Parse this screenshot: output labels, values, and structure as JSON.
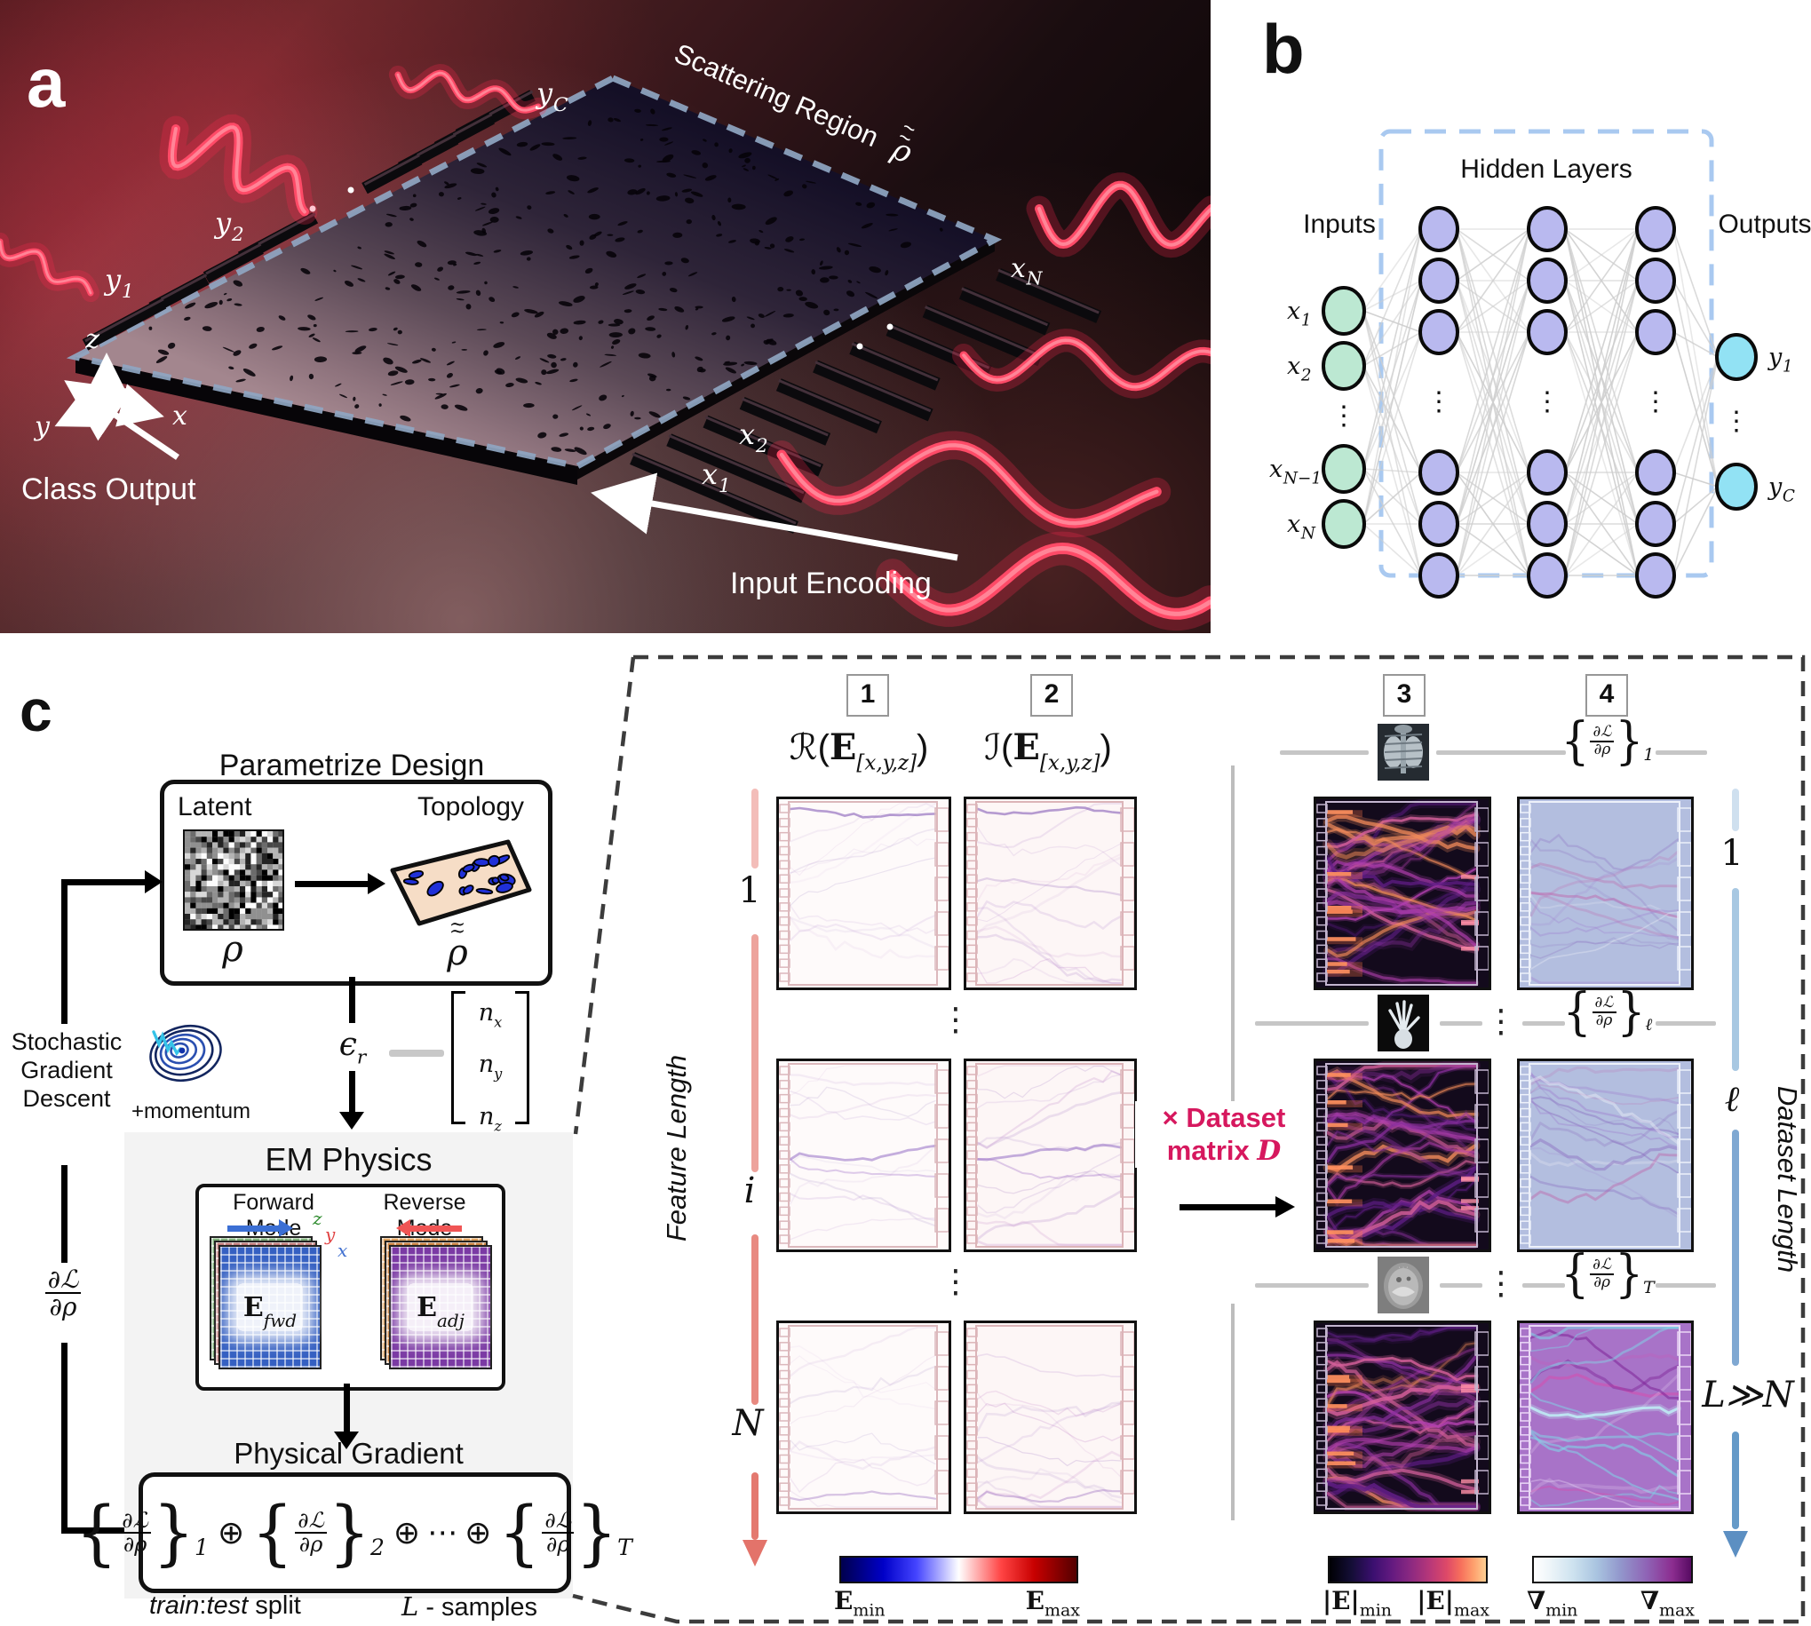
{
  "colors": {
    "wave_pink": "#ff4a67",
    "chip_dash": "#8fa6c2",
    "accent_crimson": "#d6185e",
    "nn_input": "#bce8d2",
    "nn_hidden": "#b9b9ef",
    "nn_output": "#92e2f4",
    "nn_box_dash": "#a9c9f0",
    "forward_blue": "#3b6fd4",
    "reverse_red": "#f05555",
    "feature_arrow": "#e3736a",
    "dataset_arrow": "#5c8fc2",
    "colorbar_types": [
      "seismic",
      "magma",
      "nabla"
    ]
  },
  "panel_a": {
    "label": "a",
    "scattering_label": "Scattering Region",
    "scattering_symbol": "ρ",
    "tilde": "~",
    "class_output": "Class Output",
    "input_encoding": "Input Encoding",
    "outputs": [
      {
        "base": "y",
        "sub": "1"
      },
      {
        "base": "y",
        "sub": "2"
      },
      {
        "base": "y",
        "sub": "C"
      }
    ],
    "inputs": [
      {
        "base": "x",
        "sub": "1"
      },
      {
        "base": "x",
        "sub": "2"
      },
      {
        "base": "x",
        "sub": "N"
      }
    ],
    "axes": {
      "x": "x",
      "y": "y",
      "z": "z"
    }
  },
  "panel_b": {
    "label": "b",
    "inputs_label": "Inputs",
    "hidden_label": "Hidden Layers",
    "outputs_label": "Outputs",
    "dots": "⋮",
    "input_nodes": [
      {
        "base": "x",
        "sub": "1"
      },
      {
        "base": "x",
        "sub": "2"
      },
      {
        "base": "x",
        "sub": "N−1"
      },
      {
        "base": "x",
        "sub": "N"
      }
    ],
    "output_nodes": [
      {
        "base": "y",
        "sub": "1"
      },
      {
        "base": "y",
        "sub": "C"
      }
    ]
  },
  "panel_c": {
    "label": "c",
    "title": "Parametrize Design",
    "latent": "Latent",
    "topology": "Topology",
    "rho": "ρ",
    "tilde": "~",
    "sgd": [
      "Stochastic",
      "Gradient",
      "Descent"
    ],
    "momentum": "+momentum",
    "epsilon": {
      "base": "ϵ",
      "sub": "r"
    },
    "n_vector": [
      {
        "base": "n",
        "sub": "x"
      },
      {
        "base": "n",
        "sub": "y"
      },
      {
        "base": "n",
        "sub": "z"
      }
    ],
    "em_title": "EM Physics",
    "forward": "Forward Mode",
    "reverse": "Reverse Mode",
    "axis": {
      "z": "z",
      "y": "y",
      "x": "x"
    },
    "e_fwd": {
      "base": "E",
      "sub": "fwd"
    },
    "e_adj": {
      "base": "E",
      "sub": "adj"
    },
    "grad_frac": {
      "num": "∂ℒ",
      "den": "∂ρ"
    },
    "phys_title": "Physical Gradient",
    "phys_terms": [
      "1",
      "2",
      "T"
    ],
    "oplus": "⊕",
    "cdots": "⋯",
    "train_test": {
      "train": "train",
      "colon": ":",
      "test": "test",
      "split": " split"
    },
    "l_samples": {
      "l": "L",
      "rest": "- samples"
    }
  },
  "right_panel": {
    "step_numbers": [
      "1",
      "2",
      "3",
      "4"
    ],
    "col1_header": {
      "script": "ℛ",
      "open": "(",
      "E": "E",
      "sub": "[x,y,z]",
      "close": ")"
    },
    "col2_header": {
      "script": "ℐ",
      "open": "(",
      "E": "E",
      "sub": "[x,y,z]",
      "close": ")"
    },
    "feature_axis": {
      "label": "Feature Length",
      "ticks": [
        "1",
        "i",
        "N"
      ]
    },
    "dataset_axis": {
      "label": "Dataset Length",
      "ticks": [
        "1",
        "ℓ",
        "L≫N"
      ]
    },
    "dataset_matrix": {
      "line1": "× Dataset",
      "line2_a": "matrix ",
      "line2_b": "D"
    },
    "grad_subs": [
      "1",
      "ℓ",
      "T"
    ],
    "row_icons": [
      "chest-xray",
      "hand-xray",
      "ct-scan"
    ],
    "dots": "⋮",
    "colorbars": [
      {
        "type": "seismic",
        "min": {
          "base": "E",
          "sub": "min"
        },
        "max": {
          "base": "E",
          "sub": "max"
        }
      },
      {
        "type": "magma",
        "min": {
          "base": "|E|",
          "sub": "min"
        },
        "max": {
          "base": "|E|",
          "sub": "max"
        }
      },
      {
        "type": "nabla",
        "min": {
          "base": "∇",
          "sub": "min"
        },
        "max": {
          "base": "∇",
          "sub": "max"
        }
      }
    ]
  }
}
